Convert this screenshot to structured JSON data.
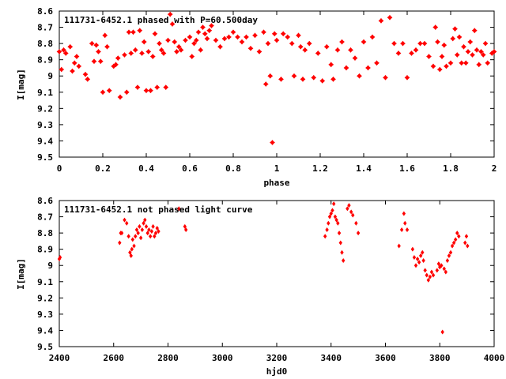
{
  "chart_data": [
    {
      "type": "scatter",
      "title": "111731-6452.1 phased with P=60.500day",
      "xlabel": "phase",
      "ylabel": "I[mag]",
      "xlim": [
        0,
        2
      ],
      "ylim": [
        8.6,
        9.5
      ],
      "y_inverted": true,
      "x_ticks": [
        "0",
        "0.2",
        "0.4",
        "0.6",
        "0.8",
        "1",
        "1.2",
        "1.4",
        "1.6",
        "1.8",
        "2"
      ],
      "y_ticks": [
        "8.6",
        "8.7",
        "8.8",
        "8.9",
        "9",
        "9.1",
        "9.2",
        "9.3",
        "9.4",
        "9.5"
      ],
      "marker_color": "#ff0000",
      "points": [
        [
          0.0,
          8.85
        ],
        [
          0.01,
          8.96
        ],
        [
          0.02,
          8.84
        ],
        [
          0.03,
          8.86
        ],
        [
          0.05,
          8.82
        ],
        [
          0.06,
          8.97
        ],
        [
          0.07,
          8.92
        ],
        [
          0.08,
          8.88
        ],
        [
          0.09,
          8.94
        ],
        [
          0.12,
          8.99
        ],
        [
          0.13,
          9.02
        ],
        [
          0.15,
          8.8
        ],
        [
          0.16,
          8.91
        ],
        [
          0.17,
          8.81
        ],
        [
          0.18,
          8.85
        ],
        [
          0.19,
          8.91
        ],
        [
          0.2,
          9.1
        ],
        [
          0.21,
          8.75
        ],
        [
          0.22,
          8.82
        ],
        [
          0.23,
          9.09
        ],
        [
          0.25,
          8.94
        ],
        [
          0.26,
          8.93
        ],
        [
          0.27,
          8.89
        ],
        [
          0.28,
          9.13
        ],
        [
          0.3,
          8.87
        ],
        [
          0.31,
          9.1
        ],
        [
          0.32,
          8.73
        ],
        [
          0.33,
          8.86
        ],
        [
          0.34,
          8.73
        ],
        [
          0.35,
          8.84
        ],
        [
          0.36,
          9.07
        ],
        [
          0.37,
          8.72
        ],
        [
          0.38,
          8.86
        ],
        [
          0.39,
          8.79
        ],
        [
          0.4,
          9.09
        ],
        [
          0.41,
          8.85
        ],
        [
          0.42,
          9.09
        ],
        [
          0.43,
          8.88
        ],
        [
          0.44,
          8.74
        ],
        [
          0.45,
          9.07
        ],
        [
          0.46,
          8.8
        ],
        [
          0.47,
          8.84
        ],
        [
          0.48,
          8.86
        ],
        [
          0.49,
          9.07
        ],
        [
          0.5,
          8.78
        ],
        [
          0.51,
          8.62
        ],
        [
          0.52,
          8.68
        ],
        [
          0.53,
          8.79
        ],
        [
          0.54,
          8.85
        ],
        [
          0.55,
          8.82
        ],
        [
          0.56,
          8.84
        ],
        [
          0.58,
          8.78
        ],
        [
          0.6,
          8.76
        ],
        [
          0.61,
          8.88
        ],
        [
          0.62,
          8.8
        ],
        [
          0.63,
          8.78
        ],
        [
          0.64,
          8.73
        ],
        [
          0.65,
          8.84
        ],
        [
          0.66,
          8.7
        ],
        [
          0.67,
          8.74
        ],
        [
          0.68,
          8.77
        ],
        [
          0.69,
          8.72
        ],
        [
          0.7,
          8.69
        ],
        [
          0.72,
          8.78
        ],
        [
          0.74,
          8.82
        ],
        [
          0.76,
          8.77
        ],
        [
          0.78,
          8.76
        ],
        [
          0.8,
          8.73
        ],
        [
          0.82,
          8.76
        ],
        [
          0.84,
          8.79
        ],
        [
          0.86,
          8.76
        ],
        [
          0.88,
          8.83
        ],
        [
          0.9,
          8.75
        ],
        [
          0.92,
          8.85
        ],
        [
          0.94,
          8.73
        ],
        [
          0.95,
          9.05
        ],
        [
          0.96,
          8.8
        ],
        [
          0.97,
          9.0
        ],
        [
          0.98,
          9.41
        ],
        [
          0.99,
          8.74
        ],
        [
          1.0,
          8.78
        ],
        [
          1.02,
          9.02
        ],
        [
          1.03,
          8.74
        ],
        [
          1.05,
          8.76
        ],
        [
          1.07,
          8.8
        ],
        [
          1.08,
          9.0
        ],
        [
          1.1,
          8.75
        ],
        [
          1.11,
          8.82
        ],
        [
          1.12,
          9.02
        ],
        [
          1.13,
          8.84
        ],
        [
          1.15,
          8.8
        ],
        [
          1.17,
          9.01
        ],
        [
          1.19,
          8.86
        ],
        [
          1.21,
          9.03
        ],
        [
          1.23,
          8.82
        ],
        [
          1.25,
          8.93
        ],
        [
          1.26,
          9.02
        ],
        [
          1.28,
          8.84
        ],
        [
          1.3,
          8.79
        ],
        [
          1.32,
          8.95
        ],
        [
          1.34,
          8.84
        ],
        [
          1.36,
          8.89
        ],
        [
          1.38,
          9.0
        ],
        [
          1.4,
          8.79
        ],
        [
          1.42,
          8.95
        ],
        [
          1.44,
          8.76
        ],
        [
          1.46,
          8.92
        ],
        [
          1.48,
          8.66
        ],
        [
          1.5,
          9.01
        ],
        [
          1.52,
          8.64
        ],
        [
          1.54,
          8.8
        ],
        [
          1.56,
          8.86
        ],
        [
          1.58,
          8.8
        ],
        [
          1.6,
          9.01
        ],
        [
          1.62,
          8.86
        ],
        [
          1.64,
          8.84
        ],
        [
          1.66,
          8.8
        ],
        [
          1.68,
          8.8
        ],
        [
          1.7,
          8.88
        ],
        [
          1.72,
          8.94
        ],
        [
          1.73,
          8.7
        ],
        [
          1.74,
          8.79
        ],
        [
          1.75,
          8.96
        ],
        [
          1.76,
          8.88
        ],
        [
          1.77,
          8.81
        ],
        [
          1.78,
          8.94
        ],
        [
          1.8,
          8.92
        ],
        [
          1.81,
          8.77
        ],
        [
          1.82,
          8.71
        ],
        [
          1.83,
          8.87
        ],
        [
          1.84,
          8.76
        ],
        [
          1.85,
          8.92
        ],
        [
          1.86,
          8.82
        ],
        [
          1.87,
          8.92
        ],
        [
          1.88,
          8.85
        ],
        [
          1.89,
          8.79
        ],
        [
          1.9,
          8.87
        ],
        [
          1.91,
          8.72
        ],
        [
          1.92,
          8.84
        ],
        [
          1.93,
          8.93
        ],
        [
          1.94,
          8.85
        ],
        [
          1.95,
          8.87
        ],
        [
          1.96,
          8.8
        ],
        [
          1.97,
          8.92
        ],
        [
          1.99,
          8.86
        ],
        [
          2.0,
          8.85
        ]
      ]
    },
    {
      "type": "scatter",
      "title": "111731-6452.1 not phased light curve",
      "xlabel": "hjd0",
      "ylabel": "I[mag]",
      "xlim": [
        2400,
        4000
      ],
      "ylim": [
        8.6,
        9.5
      ],
      "y_inverted": true,
      "x_ticks": [
        "2400",
        "2600",
        "2800",
        "3000",
        "3200",
        "3400",
        "3600",
        "3800",
        "4000"
      ],
      "y_ticks": [
        "8.6",
        "8.7",
        "8.8",
        "8.9",
        "9",
        "9.1",
        "9.2",
        "9.3",
        "9.4",
        "9.5"
      ],
      "marker_color": "#ff0000",
      "points": [
        [
          2400,
          8.96
        ],
        [
          2403,
          8.95
        ],
        [
          2622,
          8.86
        ],
        [
          2626,
          8.8
        ],
        [
          2630,
          8.8
        ],
        [
          2640,
          8.72
        ],
        [
          2648,
          8.74
        ],
        [
          2655,
          8.82
        ],
        [
          2660,
          8.92
        ],
        [
          2664,
          8.94
        ],
        [
          2667,
          8.9
        ],
        [
          2670,
          8.84
        ],
        [
          2675,
          8.88
        ],
        [
          2680,
          8.82
        ],
        [
          2685,
          8.78
        ],
        [
          2690,
          8.8
        ],
        [
          2695,
          8.76
        ],
        [
          2700,
          8.83
        ],
        [
          2705,
          8.78
        ],
        [
          2710,
          8.74
        ],
        [
          2715,
          8.72
        ],
        [
          2720,
          8.76
        ],
        [
          2725,
          8.8
        ],
        [
          2730,
          8.78
        ],
        [
          2735,
          8.82
        ],
        [
          2740,
          8.79
        ],
        [
          2745,
          8.76
        ],
        [
          2750,
          8.82
        ],
        [
          2755,
          8.8
        ],
        [
          2760,
          8.77
        ],
        [
          2765,
          8.79
        ],
        [
          2840,
          8.65
        ],
        [
          2862,
          8.76
        ],
        [
          2866,
          8.78
        ],
        [
          3378,
          8.82
        ],
        [
          3385,
          8.78
        ],
        [
          3390,
          8.74
        ],
        [
          3395,
          8.7
        ],
        [
          3400,
          8.68
        ],
        [
          3405,
          8.66
        ],
        [
          3410,
          8.62
        ],
        [
          3415,
          8.7
        ],
        [
          3420,
          8.72
        ],
        [
          3425,
          8.74
        ],
        [
          3430,
          8.8
        ],
        [
          3435,
          8.86
        ],
        [
          3440,
          8.92
        ],
        [
          3445,
          8.97
        ],
        [
          3460,
          8.65
        ],
        [
          3466,
          8.63
        ],
        [
          3474,
          8.67
        ],
        [
          3480,
          8.69
        ],
        [
          3492,
          8.74
        ],
        [
          3500,
          8.8
        ],
        [
          3650,
          8.88
        ],
        [
          3660,
          8.78
        ],
        [
          3668,
          8.68
        ],
        [
          3672,
          8.74
        ],
        [
          3680,
          8.78
        ],
        [
          3700,
          8.9
        ],
        [
          3706,
          8.95
        ],
        [
          3712,
          9.0
        ],
        [
          3718,
          8.96
        ],
        [
          3724,
          8.98
        ],
        [
          3730,
          8.94
        ],
        [
          3736,
          8.92
        ],
        [
          3740,
          8.97
        ],
        [
          3746,
          9.03
        ],
        [
          3752,
          9.06
        ],
        [
          3758,
          9.09
        ],
        [
          3764,
          9.07
        ],
        [
          3770,
          9.04
        ],
        [
          3776,
          9.06
        ],
        [
          3790,
          9.03
        ],
        [
          3796,
          8.99
        ],
        [
          3800,
          9.01
        ],
        [
          3806,
          9.0
        ],
        [
          3810,
          9.41
        ],
        [
          3816,
          9.02
        ],
        [
          3822,
          9.04
        ],
        [
          3828,
          8.97
        ],
        [
          3834,
          8.94
        ],
        [
          3840,
          8.92
        ],
        [
          3846,
          8.88
        ],
        [
          3852,
          8.86
        ],
        [
          3858,
          8.84
        ],
        [
          3864,
          8.8
        ],
        [
          3870,
          8.82
        ],
        [
          3893,
          8.86
        ],
        [
          3898,
          8.82
        ],
        [
          3902,
          8.88
        ]
      ]
    }
  ]
}
